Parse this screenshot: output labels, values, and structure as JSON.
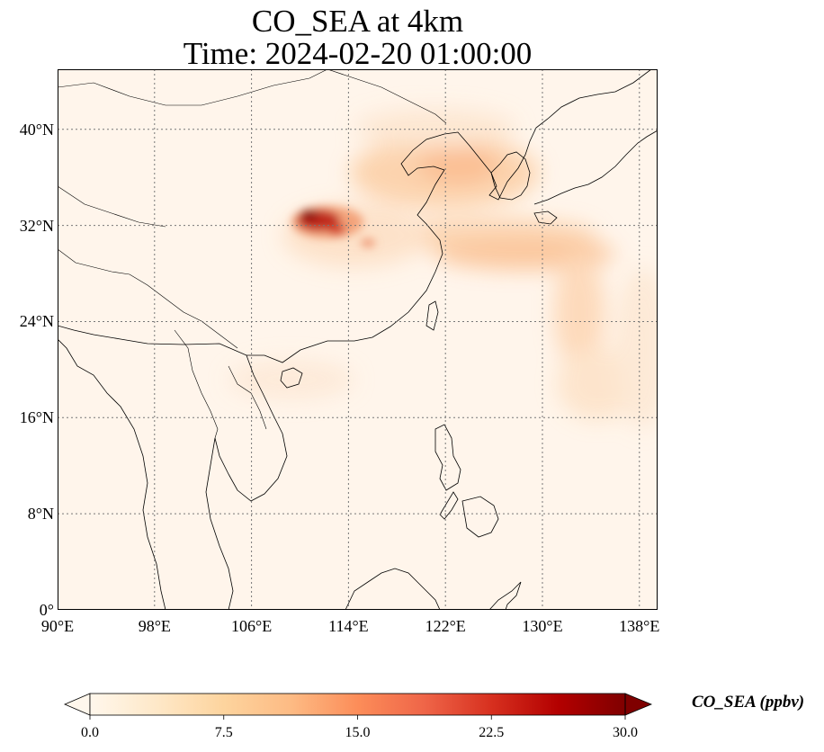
{
  "title": {
    "line1": "CO_SEA at 4km",
    "line2": "Time: 2024-02-20 01:00:00"
  },
  "map": {
    "lon_range": [
      90,
      139.5
    ],
    "lat_range": [
      0,
      45
    ],
    "lon_ticks": [
      {
        "value": 90,
        "label": "90°E"
      },
      {
        "value": 98,
        "label": "98°E"
      },
      {
        "value": 106,
        "label": "106°E"
      },
      {
        "value": 114,
        "label": "114°E"
      },
      {
        "value": 122,
        "label": "122°E"
      },
      {
        "value": 130,
        "label": "130°E"
      },
      {
        "value": 138,
        "label": "138°E"
      }
    ],
    "lat_ticks": [
      {
        "value": 0,
        "label": "0°"
      },
      {
        "value": 8,
        "label": "8°N"
      },
      {
        "value": 16,
        "label": "16°N"
      },
      {
        "value": 24,
        "label": "24°N"
      },
      {
        "value": 32,
        "label": "32°N"
      },
      {
        "value": 40,
        "label": "40°N"
      }
    ],
    "gridlines": true,
    "background_color": "#fff5eb",
    "coastline_color": "#000000"
  },
  "colorbar": {
    "label": "CO_SEA (ppbv)",
    "range": [
      0,
      30
    ],
    "extend": "both",
    "colormap": "OrRd",
    "colors": [
      "#fff7ec",
      "#fee8c8",
      "#fdd49e",
      "#fdbb84",
      "#fc8d59",
      "#ef6548",
      "#d7301f",
      "#b30000",
      "#7f0000"
    ],
    "ticks": [
      {
        "value": 0,
        "label": "0.0"
      },
      {
        "value": 7.5,
        "label": "7.5"
      },
      {
        "value": 15,
        "label": "15.0"
      },
      {
        "value": 22.5,
        "label": "22.5"
      },
      {
        "value": 30,
        "label": "30.0"
      }
    ]
  },
  "plumes": [
    {
      "name": "sichuan-hotspot",
      "lon": 111.5,
      "lat": 32.5,
      "value": 28
    },
    {
      "name": "sichuan-outer",
      "lon": 112.5,
      "lat": 32.0,
      "value": 14
    },
    {
      "name": "korea-plume",
      "lon": 124.5,
      "lat": 37.0,
      "value": 7
    },
    {
      "name": "east-china-sea-plume",
      "lon": 126.0,
      "lat": 32.0,
      "value": 6
    },
    {
      "name": "east-ocean-tail",
      "lon": 134.0,
      "lat": 26.0,
      "value": 5
    },
    {
      "name": "south-china-coast",
      "lon": 110.0,
      "lat": 21.0,
      "value": 3
    }
  ]
}
